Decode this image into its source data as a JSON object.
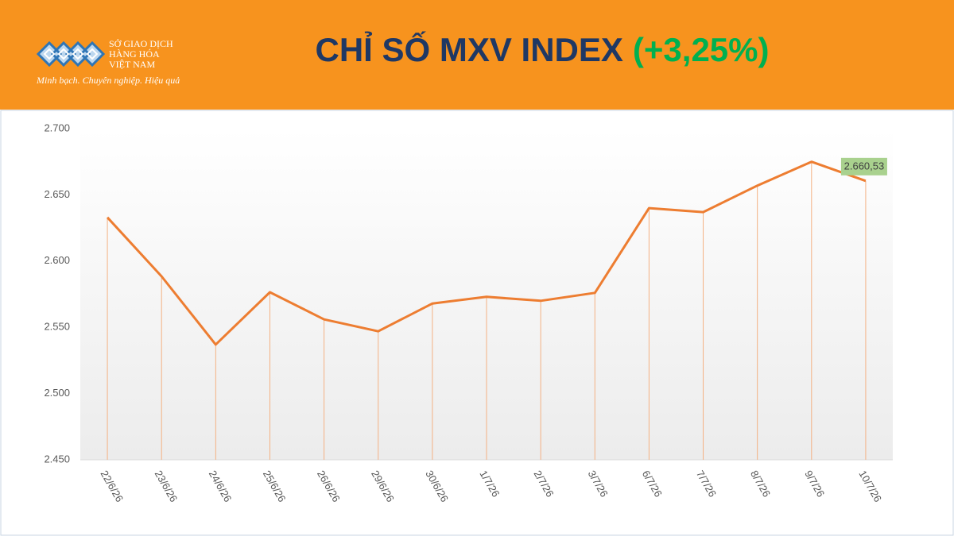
{
  "header": {
    "logo_lines": [
      "SỞ GIAO DỊCH",
      "HÀNG HÓA",
      "VIỆT NAM"
    ],
    "slogan": "Minh bạch. Chuyên nghiệp. Hiệu quả",
    "title": "CHỈ SỐ MXV INDEX",
    "change": "(+3,25%)"
  },
  "chart_data": {
    "type": "line",
    "categories": [
      "22/6/26",
      "23/6/26",
      "24/6/26",
      "25/6/26",
      "26/6/26",
      "29/6/26",
      "30/6/26",
      "1/7/26",
      "2/7/26",
      "3/7/26",
      "6/7/26",
      "7/7/26",
      "8/7/26",
      "9/7/26",
      "10/7/26"
    ],
    "values": [
      2633,
      2588.5,
      2537,
      2576.5,
      2556,
      2547,
      2568,
      2573,
      2570,
      2576,
      2640,
      2637,
      2657,
      2675,
      2660.53
    ],
    "value_labels": [
      null,
      null,
      null,
      null,
      null,
      null,
      null,
      null,
      null,
      null,
      null,
      null,
      null,
      null,
      "2.660,53"
    ],
    "color": "#ed7d31",
    "ylim": [
      2450,
      2700
    ],
    "yticks": [
      {
        "value": 2450,
        "label": "2.450"
      },
      {
        "value": 2500,
        "label": "2.500"
      },
      {
        "value": 2550,
        "label": "2.550"
      },
      {
        "value": 2600,
        "label": "2.600"
      },
      {
        "value": 2650,
        "label": "2.650"
      },
      {
        "value": 2700,
        "label": "2.700"
      }
    ],
    "drop_lines": true
  }
}
